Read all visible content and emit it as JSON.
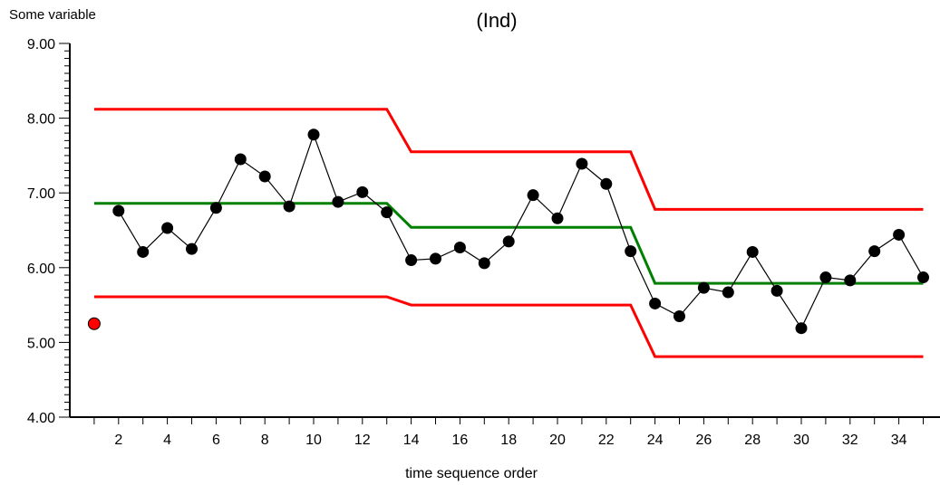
{
  "chart_data": {
    "type": "line",
    "title": "(Ind)",
    "ylabel": "Some variable",
    "xlabel": "time sequence order",
    "ylim": [
      4.0,
      9.0
    ],
    "xlim": [
      0,
      36
    ],
    "y_ticks": [
      "4.00",
      "5.00",
      "6.00",
      "7.00",
      "8.00",
      "9.00"
    ],
    "x_tick_labels": [
      "2",
      "4",
      "6",
      "8",
      "10",
      "12",
      "14",
      "16",
      "18",
      "20",
      "22",
      "24",
      "26",
      "28",
      "30",
      "32",
      "34"
    ],
    "grid": false,
    "series": [
      {
        "color": "#000000",
        "x": [
          2,
          3,
          4,
          5,
          6,
          7,
          8,
          9,
          10,
          11,
          12,
          13,
          14,
          15,
          16,
          17,
          18,
          19,
          20,
          21,
          22,
          23,
          24,
          25,
          26,
          27,
          28,
          29,
          30,
          31,
          32,
          33,
          34,
          35
        ],
        "values": [
          6.76,
          6.21,
          6.53,
          6.25,
          6.8,
          7.45,
          7.22,
          6.82,
          7.78,
          6.88,
          7.01,
          6.74,
          6.1,
          6.12,
          6.27,
          6.06,
          6.35,
          6.97,
          6.66,
          7.39,
          7.12,
          6.22,
          5.52,
          5.35,
          5.73,
          5.67,
          6.21,
          5.69,
          5.19,
          5.87,
          5.83,
          6.22,
          6.44,
          5.87
        ]
      },
      {
        "color": "#ff0000",
        "x": [
          1
        ],
        "values": [
          5.25
        ],
        "flagged": true
      },
      {
        "color": "#008000",
        "x": [
          1,
          13,
          14,
          23,
          24,
          35
        ],
        "values": [
          6.86,
          6.86,
          6.54,
          6.54,
          5.79,
          5.79
        ]
      },
      {
        "color": "#ff0000",
        "x": [
          1,
          13,
          14,
          23,
          24,
          35
        ],
        "values": [
          8.12,
          8.12,
          7.55,
          7.55,
          6.78,
          6.78
        ]
      },
      {
        "color": "#ff0000",
        "x": [
          1,
          13,
          14,
          23,
          24,
          35
        ],
        "values": [
          5.61,
          5.61,
          5.5,
          5.5,
          4.81,
          4.81
        ]
      }
    ]
  }
}
